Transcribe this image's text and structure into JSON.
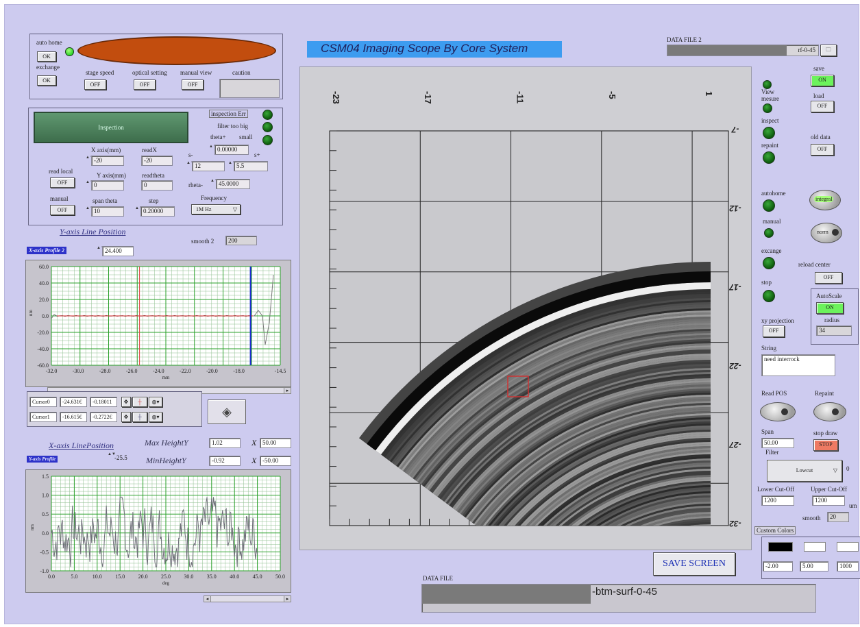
{
  "title": "CSM04 Imaging Scope By Core System",
  "top_left": {
    "auto_home": "auto home",
    "ok1": "OK",
    "exchange": "exchange",
    "ok2": "OK",
    "stage_speed": "stage speed",
    "optical_setting": "optical setting",
    "manual_view": "manual view",
    "caution": "caution",
    "off": "OFF"
  },
  "inspection": {
    "button": "Inspection",
    "inspection_err": "inspection Err",
    "filter_too_big": "filter too big",
    "theta_plus": "theta+",
    "small": "small",
    "x_axis_label": "X axis(mm)",
    "x_axis_val": "-20",
    "readx_label": "readX",
    "readx_val": "-20",
    "s_minus": "s-",
    "s_plus": "s+",
    "theta_val": "0.00000",
    "s_minus_val": "12",
    "s_plus_val": "5.5",
    "read_local": "read local",
    "y_axis_label": "Y axis(mm)",
    "y_axis_val": "0",
    "readtheta_label": "readtheta",
    "readtheta_val": "0",
    "theta_minus": "rheta-",
    "theta_minus_val": "45.0000",
    "manual": "manual",
    "span_theta": "span theta",
    "span_theta_val": "10",
    "step": "step",
    "step_val": "0.20000",
    "frequency": "Frequency",
    "frequency_val": "1M Hz",
    "off": "OFF"
  },
  "y_axis_line_position": "Y-axis Line Position",
  "smooth2_label": "smooth 2",
  "smooth2_val": "200",
  "x_axis_profile_tag": "X-axis Profile 2",
  "x_axis_profile_val": "24.400",
  "plot1": {
    "ylabel": "nm",
    "xlabel": "mm",
    "yticks": [
      "60.0",
      "40.0",
      "20.0",
      "0.0",
      "-20.0",
      "-40.0",
      "-60.0"
    ],
    "xticks": [
      "-32.0",
      "-30.0",
      "-28.0",
      "-26.0",
      "-24.0",
      "-22.0",
      "-20.0",
      "-18.0",
      "-14.5"
    ]
  },
  "cursors": [
    {
      "name": "Cursor0",
      "x": "-24.631€",
      "y": "-0.18011"
    },
    {
      "name": "Cursor1",
      "x": "-16.615€",
      "y": "-0.2722€"
    }
  ],
  "x_axis_line_position": "X-axis LinePosition",
  "y_axis_profile_tag": "Y-axis Profile",
  "y_axis_profile_val": "-25.5",
  "max_height_label": "Max HeightY",
  "max_height_val": "1.02",
  "x_max_label": "X",
  "x_max_val": "50.00",
  "min_height_label": "MinHeightY",
  "min_height_val": "-0.92",
  "x_min_label": "X",
  "x_min_val": "-50.00",
  "plot2": {
    "ylabel": "nm",
    "xlabel": "deg",
    "yticks": [
      "1.5",
      "1.0",
      "0.5",
      "0.0",
      "-0.5",
      "-1.0"
    ],
    "xticks": [
      "0.0",
      "5.0",
      "10.0",
      "15.0",
      "20.0",
      "25.0",
      "30.0",
      "35.0",
      "40.0",
      "45.0",
      "50.0"
    ]
  },
  "scan": {
    "top_ticks": [
      "-23",
      "-17",
      "-11",
      "-5",
      "1"
    ],
    "right_ticks": [
      "-7",
      "-12",
      "-17",
      "-22",
      "-27",
      "-32"
    ]
  },
  "data_file_2_label": "DATA FILE 2",
  "data_file_2_val": "rf-0-45",
  "data_file_label": "DATA FILE",
  "data_file_val": "-btm-surf-0-45",
  "save_screen": "SAVE SCREEN",
  "right": {
    "view": "View",
    "save": "save",
    "save_on": "ON",
    "mesure": "mesure",
    "load": "load",
    "load_off": "OFF",
    "inspect": "inspect",
    "repaint": "repaint",
    "old_data": "old data",
    "old_data_off": "OFF",
    "autohome": "autohome",
    "integral": "integral",
    "manual": "manual",
    "norm": "norm",
    "excange": "excange",
    "reload_center": "reload center",
    "reload_off": "OFF",
    "stop": "stop",
    "autoscale": "AutoScale",
    "autoscale_on": "ON",
    "radius": "radius",
    "radius_val": "34",
    "xy_projection": "xy projection",
    "xy_off": "OFF",
    "string_label": "String",
    "string_val": "need interrock",
    "read_pos": "Read POS",
    "repaint2": "Repaint",
    "span": "Span",
    "span_val": "50.00",
    "filter": "Filter",
    "stop_draw": "stop draw",
    "stop_btn": "STOP",
    "lowcut": "Lowcut",
    "lowcut_idx": "0",
    "lower_cutoff": "Lower Cut-Off",
    "upper_cutoff": "Upper Cut-Off",
    "lower_val": "1200",
    "upper_val": "1200",
    "unit": "um",
    "smooth": "smooth",
    "smooth_val": "20",
    "custom_colors": "Custom Colors",
    "c1": "-2.00",
    "c2": "5.00",
    "c3": "1000"
  }
}
